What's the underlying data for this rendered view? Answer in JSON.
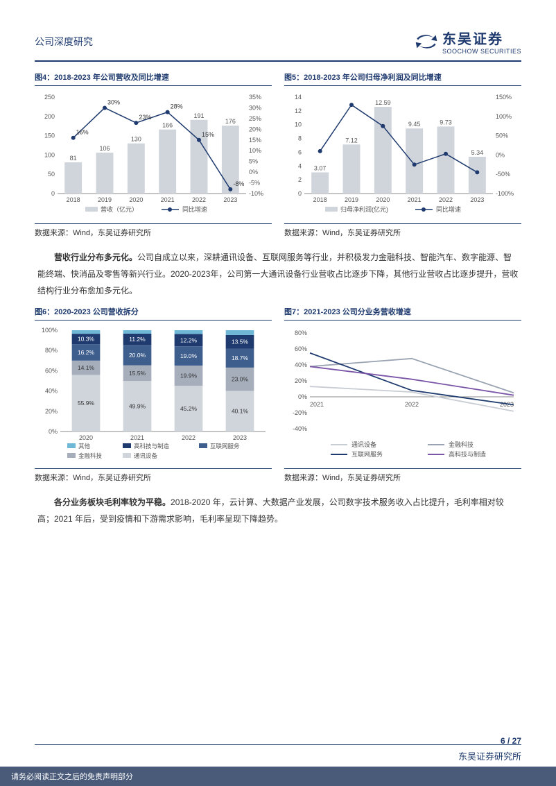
{
  "header": {
    "doc_type": "公司深度研究",
    "logo_cn": "东吴证券",
    "logo_en": "SOOCHOW SECURITIES"
  },
  "chart4": {
    "title": "图4：2018-2023 年公司营收及同比增速",
    "type": "bar-line-dual-axis",
    "categories": [
      "2018",
      "2019",
      "2020",
      "2021",
      "2022",
      "2023"
    ],
    "bars": {
      "label": "营收（亿元）",
      "values": [
        81,
        106,
        130,
        166,
        191,
        176
      ],
      "color": "#d0d5dc"
    },
    "line": {
      "label": "同比增速",
      "values": [
        16,
        30,
        23,
        28,
        15,
        -8
      ],
      "labels": [
        "16%",
        "30%",
        "23%",
        "28%",
        "15%",
        "-8%"
      ],
      "color": "#1e3a6e",
      "marker": "circle"
    },
    "y1": {
      "lim": [
        0,
        250
      ],
      "step": 50
    },
    "y2": {
      "lim": [
        -10,
        35
      ],
      "step": 5,
      "suffix": "%"
    },
    "text_color": "#555",
    "axis_color": "#888"
  },
  "chart5": {
    "title": "图5：2018-2023 年公司归母净利润及同比增速",
    "type": "bar-line-dual-axis",
    "categories": [
      "2018",
      "2019",
      "2020",
      "2021",
      "2022",
      "2023"
    ],
    "bars": {
      "label": "归母净利润(亿元)",
      "values": [
        3.07,
        7.12,
        12.59,
        9.45,
        9.73,
        5.34
      ],
      "color": "#d0d5dc",
      "top_labels": [
        "3.07",
        "7.12",
        "12.59",
        "9.45",
        "9.73",
        "5.34"
      ]
    },
    "line": {
      "label": "同比增速",
      "values": [
        10,
        130,
        75,
        -25,
        3,
        -45
      ],
      "color": "#1e3a6e",
      "marker": "circle"
    },
    "y1": {
      "lim": [
        0,
        14
      ],
      "step": 2
    },
    "y2": {
      "lim": [
        -100,
        150
      ],
      "step": 50,
      "suffix": "%"
    },
    "text_color": "#555",
    "axis_color": "#888"
  },
  "chart6": {
    "title": "图6：2020-2023 公司营收拆分",
    "type": "stacked-bar",
    "categories": [
      "2020",
      "2021",
      "2022",
      "2023"
    ],
    "series": [
      {
        "label": "通讯设备",
        "color": "#d0d5dc",
        "values": [
          55.9,
          49.9,
          45.2,
          40.1
        ]
      },
      {
        "label": "金融科技",
        "color": "#a6aebb",
        "values": [
          14.1,
          15.5,
          19.9,
          23.0
        ]
      },
      {
        "label": "互联网服务",
        "color": "#3e5e8e",
        "values": [
          16.2,
          20.0,
          19.0,
          18.7
        ]
      },
      {
        "label": "高科技与制造",
        "color": "#1e3a6e",
        "values": [
          10.3,
          11.2,
          12.2,
          13.5
        ]
      },
      {
        "label": "其他",
        "color": "#6eb8d6",
        "values": [
          3.5,
          3.4,
          3.7,
          4.7
        ]
      }
    ],
    "y": {
      "lim": [
        0,
        100
      ],
      "step": 20,
      "suffix": "%"
    },
    "show_labels_on": [
      [
        "10.3%",
        "16.2%",
        "14.1%",
        "55.9%"
      ],
      [
        "11.2%",
        "20.0%",
        "15.5%",
        "49.9%"
      ],
      [
        "12.2%",
        "19.0%",
        "19.9%",
        "45.2%"
      ],
      [
        "13.5%",
        "18.7%",
        "23.0%",
        "40.1%"
      ]
    ],
    "text_color": "#fff",
    "axis_color": "#888"
  },
  "chart7": {
    "title": "图7：2021-2023 公司分业务营收增速",
    "type": "line",
    "categories": [
      "2021",
      "2022",
      "2023"
    ],
    "series": [
      {
        "label": "通讯设备",
        "color": "#c8ccd3",
        "values": [
          13,
          6,
          -18
        ]
      },
      {
        "label": "金融科技",
        "color": "#9aa3b2",
        "values": [
          38,
          48,
          5
        ]
      },
      {
        "label": "互联网服务",
        "color": "#1e3a6e",
        "values": [
          55,
          8,
          -10
        ]
      },
      {
        "label": "高科技与制造",
        "color": "#7a55a8",
        "values": [
          38,
          22,
          2
        ]
      }
    ],
    "y": {
      "lim": [
        -40,
        80
      ],
      "step": 20,
      "suffix": "%"
    },
    "axis_color": "#888"
  },
  "source": "数据来源：Wind，东吴证券研究所",
  "para1_bold": "营收行业分布多元化。",
  "para1": "公司自成立以来，深耕通讯设备、互联网服务等行业，并积极发力金融科技、智能汽车、数字能源、智能终端、快消品及零售等新兴行业。2020-2023年，公司第一大通讯设备行业营收占比逐步下降，其他行业营收占比逐步提升，营收结构行业分布愈加多元化。",
  "para2_bold": "各分业务板块毛利率较为平稳。",
  "para2": "2018-2020 年，云计算、大数据产业发展，公司数字技术服务收入占比提升，毛利率相对较高；2021 年后，受到疫情和下游需求影响，毛利率呈现下降趋势。",
  "page_num": "6 / 27",
  "disclaimer": "请务必阅读正文之后的免责声明部分",
  "footer_org": "东吴证券研究所"
}
